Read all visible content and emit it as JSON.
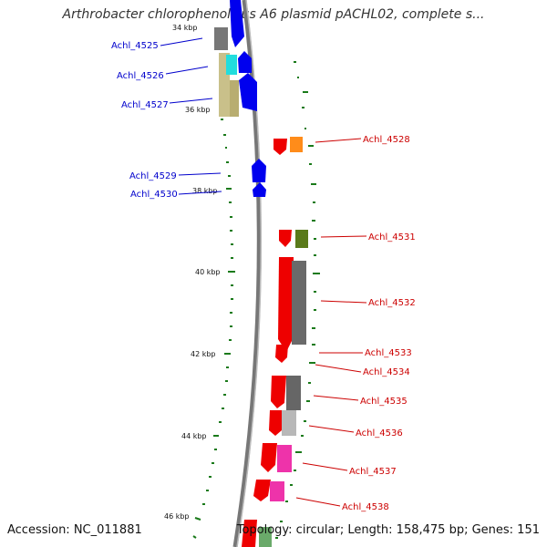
{
  "title": "Arthrobacter chlorophenolicus A6 plasmid pACHL02, complete s...",
  "accession": "Accession: NC_011881",
  "summary": "Topology: circular; Length: 158,475 bp; Genes: 151",
  "colors": {
    "forward_cds": "#0000ee",
    "reverse_cds": "#ee0000",
    "gc_skew": "#1a7a1a",
    "backbone": "#888888",
    "left_label": "#0000cc",
    "right_label": "#cc0000"
  },
  "ticks": [
    "34 kbp",
    "36 kbp",
    "38 kbp",
    "40 kbp",
    "42 kbp",
    "44 kbp",
    "46 kbp"
  ],
  "left_genes": [
    "Achl_4525",
    "Achl_4526",
    "Achl_4527",
    "Achl_4529",
    "Achl_4530"
  ],
  "right_genes": [
    "Achl_4528",
    "Achl_4531",
    "Achl_4532",
    "Achl_4533",
    "Achl_4534",
    "Achl_4535",
    "Achl_4536",
    "Achl_4537",
    "Achl_4538"
  ]
}
